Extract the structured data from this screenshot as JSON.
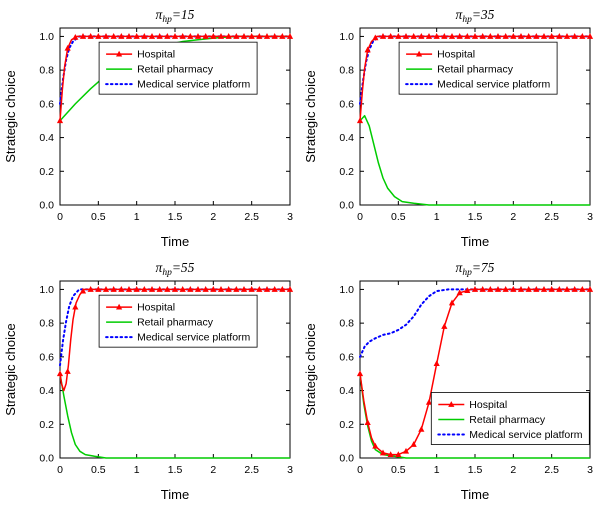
{
  "figure": {
    "background": "#ffffff"
  },
  "colors": {
    "hospital": "#ff0000",
    "retail": "#00cc00",
    "platform": "#0000ff",
    "axis": "#000000"
  },
  "chart_data": [
    {
      "type": "line",
      "title": {
        "symbol": "π",
        "subscript": "hp",
        "rest": "=15"
      },
      "xlabel": "Time",
      "ylabel": "Strategic choice",
      "xlim": [
        0,
        3
      ],
      "ylim": [
        0,
        1.05
      ],
      "xticks": {
        "values": [
          0,
          0.5,
          1,
          1.5,
          2,
          2.5,
          3
        ],
        "labels": [
          "0",
          "0.5",
          "1",
          "1.5",
          "2",
          "2.5",
          "3"
        ]
      },
      "yticks": {
        "values": [
          0,
          0.2,
          0.4,
          0.6,
          0.8,
          1.0
        ],
        "labels": [
          "0.0",
          "0.2",
          "0.4",
          "0.6",
          "0.8",
          "1.0"
        ]
      },
      "legend": {
        "fx": 0.17,
        "fy": 0.08
      },
      "series": [
        {
          "name": "Hospital",
          "color_key": "hospital",
          "style": "solid",
          "marker": "triangle",
          "marker_interval": 0.1,
          "points": [
            [
              0,
              0.5
            ],
            [
              0.03,
              0.68
            ],
            [
              0.06,
              0.82
            ],
            [
              0.1,
              0.93
            ],
            [
              0.15,
              0.98
            ],
            [
              0.22,
              1
            ],
            [
              3,
              1
            ]
          ]
        },
        {
          "name": "Retail pharmacy",
          "color_key": "retail",
          "style": "solid",
          "marker": null,
          "points": [
            [
              0,
              0.5
            ],
            [
              0.2,
              0.6
            ],
            [
              0.4,
              0.69
            ],
            [
              0.6,
              0.77
            ],
            [
              0.8,
              0.83
            ],
            [
              1,
              0.88
            ],
            [
              1.2,
              0.92
            ],
            [
              1.4,
              0.95
            ],
            [
              1.6,
              0.97
            ],
            [
              1.8,
              0.98
            ],
            [
              2,
              0.99
            ],
            [
              2.3,
              1
            ],
            [
              3,
              1
            ]
          ]
        },
        {
          "name": "Medical service platform",
          "color_key": "platform",
          "style": "dotted",
          "marker": null,
          "points": [
            [
              0,
              0.6
            ],
            [
              0.04,
              0.75
            ],
            [
              0.08,
              0.86
            ],
            [
              0.12,
              0.93
            ],
            [
              0.17,
              0.97
            ],
            [
              0.25,
              1
            ],
            [
              3,
              1
            ]
          ]
        }
      ]
    },
    {
      "type": "line",
      "title": {
        "symbol": "π",
        "subscript": "hp",
        "rest": "=35"
      },
      "xlabel": "Time",
      "ylabel": "Strategic choice",
      "xlim": [
        0,
        3
      ],
      "ylim": [
        0,
        1.05
      ],
      "xticks": {
        "values": [
          0,
          0.5,
          1,
          1.5,
          2,
          2.5,
          3
        ],
        "labels": [
          "0",
          "0.5",
          "1",
          "1.5",
          "2",
          "2.5",
          "3"
        ]
      },
      "yticks": {
        "values": [
          0,
          0.2,
          0.4,
          0.6,
          0.8,
          1.0
        ],
        "labels": [
          "0.0",
          "0.2",
          "0.4",
          "0.6",
          "0.8",
          "1.0"
        ]
      },
      "legend": {
        "fx": 0.17,
        "fy": 0.08
      },
      "series": [
        {
          "name": "Hospital",
          "color_key": "hospital",
          "style": "solid",
          "marker": "triangle",
          "marker_interval": 0.1,
          "points": [
            [
              0,
              0.5
            ],
            [
              0.03,
              0.67
            ],
            [
              0.06,
              0.81
            ],
            [
              0.1,
              0.92
            ],
            [
              0.15,
              0.97
            ],
            [
              0.22,
              1
            ],
            [
              3,
              1
            ]
          ]
        },
        {
          "name": "Retail pharmacy",
          "color_key": "retail",
          "style": "solid",
          "marker": null,
          "points": [
            [
              0,
              0.5
            ],
            [
              0.06,
              0.53
            ],
            [
              0.12,
              0.47
            ],
            [
              0.18,
              0.36
            ],
            [
              0.24,
              0.25
            ],
            [
              0.3,
              0.16
            ],
            [
              0.36,
              0.1
            ],
            [
              0.45,
              0.05
            ],
            [
              0.55,
              0.02
            ],
            [
              0.7,
              0.01
            ],
            [
              0.9,
              0
            ],
            [
              3,
              0
            ]
          ]
        },
        {
          "name": "Medical service platform",
          "color_key": "platform",
          "style": "dotted",
          "marker": null,
          "points": [
            [
              0,
              0.6
            ],
            [
              0.04,
              0.74
            ],
            [
              0.08,
              0.85
            ],
            [
              0.12,
              0.92
            ],
            [
              0.17,
              0.97
            ],
            [
              0.25,
              1
            ],
            [
              3,
              1
            ]
          ]
        }
      ]
    },
    {
      "type": "line",
      "title": {
        "symbol": "π",
        "subscript": "hp",
        "rest": "=55"
      },
      "xlabel": "Time",
      "ylabel": "Strategic choice",
      "xlim": [
        0,
        3
      ],
      "ylim": [
        0,
        1.05
      ],
      "xticks": {
        "values": [
          0,
          0.5,
          1,
          1.5,
          2,
          2.5,
          3
        ],
        "labels": [
          "0",
          "0.5",
          "1",
          "1.5",
          "2",
          "2.5",
          "3"
        ]
      },
      "yticks": {
        "values": [
          0,
          0.2,
          0.4,
          0.6,
          0.8,
          1.0
        ],
        "labels": [
          "0.0",
          "0.2",
          "0.4",
          "0.6",
          "0.8",
          "1.0"
        ]
      },
      "legend": {
        "fx": 0.17,
        "fy": 0.08
      },
      "series": [
        {
          "name": "Hospital",
          "color_key": "hospital",
          "style": "solid",
          "marker": "triangle",
          "marker_interval": 0.1,
          "points": [
            [
              0,
              0.5
            ],
            [
              0.02,
              0.44
            ],
            [
              0.05,
              0.4
            ],
            [
              0.08,
              0.44
            ],
            [
              0.11,
              0.55
            ],
            [
              0.14,
              0.7
            ],
            [
              0.17,
              0.82
            ],
            [
              0.21,
              0.92
            ],
            [
              0.26,
              0.97
            ],
            [
              0.32,
              1
            ],
            [
              3,
              1
            ]
          ]
        },
        {
          "name": "Retail pharmacy",
          "color_key": "retail",
          "style": "solid",
          "marker": null,
          "points": [
            [
              0,
              0.5
            ],
            [
              0.05,
              0.37
            ],
            [
              0.1,
              0.25
            ],
            [
              0.15,
              0.15
            ],
            [
              0.2,
              0.08
            ],
            [
              0.26,
              0.04
            ],
            [
              0.33,
              0.02
            ],
            [
              0.45,
              0.01
            ],
            [
              0.6,
              0
            ],
            [
              3,
              0
            ]
          ]
        },
        {
          "name": "Medical service platform",
          "color_key": "platform",
          "style": "dotted",
          "marker": null,
          "points": [
            [
              0,
              0.55
            ],
            [
              0.04,
              0.7
            ],
            [
              0.08,
              0.81
            ],
            [
              0.12,
              0.9
            ],
            [
              0.17,
              0.96
            ],
            [
              0.25,
              1
            ],
            [
              3,
              1
            ]
          ]
        }
      ]
    },
    {
      "type": "line",
      "title": {
        "symbol": "π",
        "subscript": "hp",
        "rest": "=75"
      },
      "xlabel": "Time",
      "ylabel": "Strategic choice",
      "xlim": [
        0,
        3
      ],
      "ylim": [
        0,
        1.05
      ],
      "xticks": {
        "values": [
          0,
          0.5,
          1,
          1.5,
          2,
          2.5,
          3
        ],
        "labels": [
          "0",
          "0.5",
          "1",
          "1.5",
          "2",
          "2.5",
          "3"
        ]
      },
      "yticks": {
        "values": [
          0,
          0.2,
          0.4,
          0.6,
          0.8,
          1.0
        ],
        "labels": [
          "0.0",
          "0.2",
          "0.4",
          "0.6",
          "0.8",
          "1.0"
        ]
      },
      "legend": {
        "fx": 0.31,
        "fy": 0.63
      },
      "series": [
        {
          "name": "Hospital",
          "color_key": "hospital",
          "style": "solid",
          "marker": "triangle",
          "marker_interval": 0.1,
          "points": [
            [
              0,
              0.5
            ],
            [
              0.05,
              0.34
            ],
            [
              0.1,
              0.21
            ],
            [
              0.15,
              0.12
            ],
            [
              0.2,
              0.07
            ],
            [
              0.3,
              0.03
            ],
            [
              0.4,
              0.02
            ],
            [
              0.5,
              0.02
            ],
            [
              0.6,
              0.04
            ],
            [
              0.7,
              0.08
            ],
            [
              0.8,
              0.17
            ],
            [
              0.9,
              0.33
            ],
            [
              1,
              0.56
            ],
            [
              1.1,
              0.78
            ],
            [
              1.2,
              0.92
            ],
            [
              1.3,
              0.98
            ],
            [
              1.45,
              1
            ],
            [
              3,
              1
            ]
          ]
        },
        {
          "name": "Retail pharmacy",
          "color_key": "retail",
          "style": "solid",
          "marker": null,
          "points": [
            [
              0,
              0.5
            ],
            [
              0.05,
              0.32
            ],
            [
              0.1,
              0.19
            ],
            [
              0.15,
              0.1
            ],
            [
              0.2,
              0.05
            ],
            [
              0.3,
              0.02
            ],
            [
              0.45,
              0.01
            ],
            [
              0.6,
              0
            ],
            [
              3,
              0
            ]
          ]
        },
        {
          "name": "Medical service platform",
          "color_key": "platform",
          "style": "dotted",
          "marker": null,
          "points": [
            [
              0,
              0.6
            ],
            [
              0.06,
              0.66
            ],
            [
              0.12,
              0.69
            ],
            [
              0.2,
              0.71
            ],
            [
              0.3,
              0.73
            ],
            [
              0.4,
              0.74
            ],
            [
              0.5,
              0.76
            ],
            [
              0.6,
              0.79
            ],
            [
              0.7,
              0.84
            ],
            [
              0.8,
              0.91
            ],
            [
              0.9,
              0.96
            ],
            [
              1,
              0.99
            ],
            [
              1.15,
              1
            ],
            [
              3,
              1
            ]
          ]
        }
      ]
    }
  ]
}
